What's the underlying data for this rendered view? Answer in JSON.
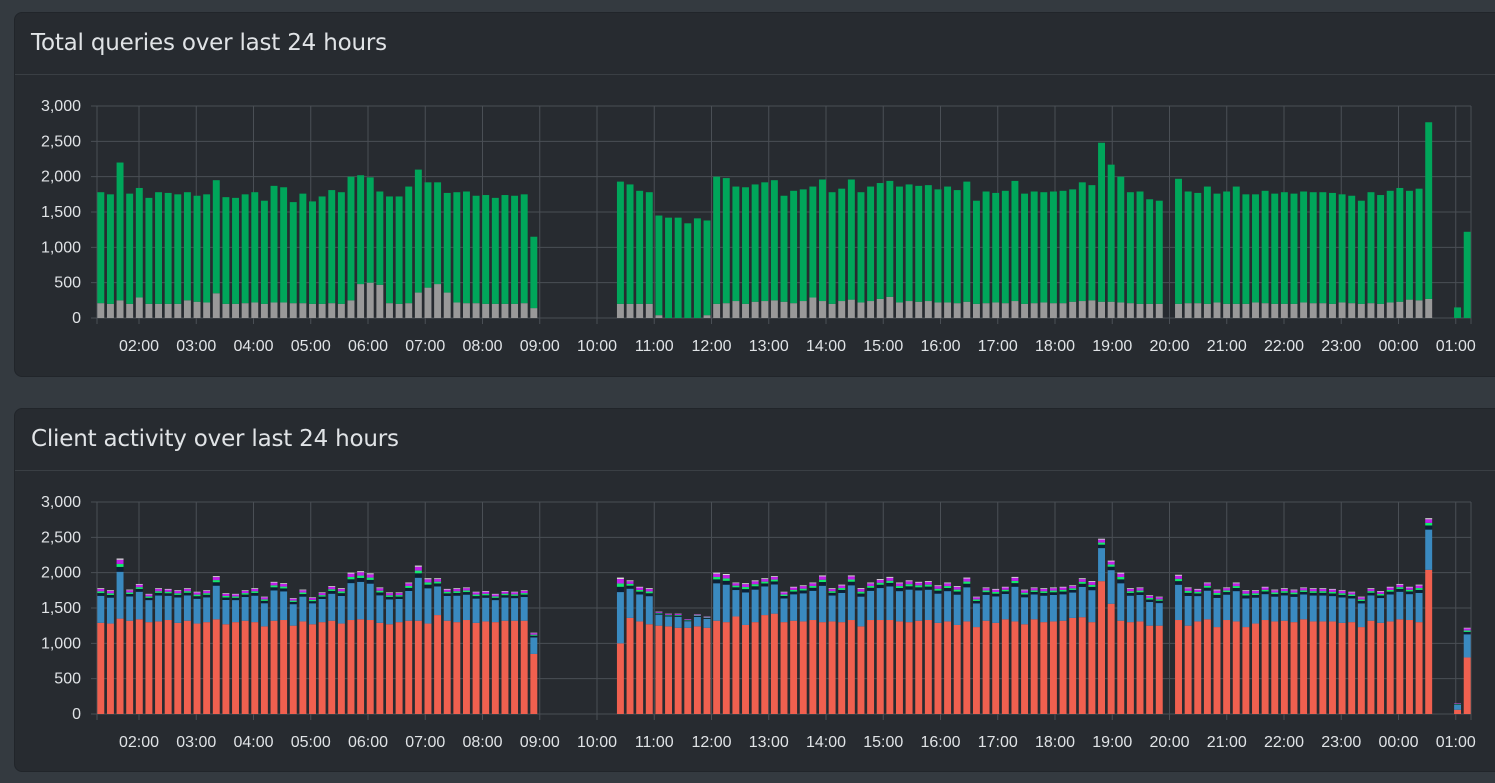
{
  "colors": {
    "background": "#343a40",
    "panel": "#272b30",
    "grid": "#4a4f55",
    "text": "#e0e3e6",
    "blocked": "#999999",
    "permitted": "#00a65a",
    "clients": [
      "#f0604f",
      "#3a8ac0",
      "#0c2035",
      "#14e86a",
      "#c020e8",
      "#e8e8e8"
    ]
  },
  "panels": {
    "queries": {
      "title": "Total queries over last 24 hours"
    },
    "clients": {
      "title": "Client activity over last 24 hours"
    }
  },
  "chart_data": [
    {
      "type": "bar",
      "stacked": true,
      "title": "Total queries over last 24 hours",
      "ylim": [
        0,
        3000
      ],
      "yticks": [
        "3,000",
        "2,500",
        "2,000",
        "1,500",
        "1,000",
        "500",
        "0"
      ],
      "xticks": [
        "02:00",
        "03:00",
        "04:00",
        "05:00",
        "06:00",
        "07:00",
        "08:00",
        "09:00",
        "10:00",
        "11:00",
        "12:00",
        "13:00",
        "14:00",
        "15:00",
        "16:00",
        "17:00",
        "18:00",
        "19:00",
        "20:00",
        "21:00",
        "22:00",
        "23:00",
        "00:00",
        "01:00"
      ],
      "grid": true,
      "total": [
        1780,
        1750,
        2200,
        1760,
        1840,
        1700,
        1780,
        1770,
        1750,
        1780,
        1730,
        1750,
        1950,
        1710,
        1700,
        1750,
        1780,
        1660,
        1870,
        1850,
        1640,
        1760,
        1650,
        1720,
        1810,
        1780,
        2000,
        2020,
        1990,
        1790,
        1720,
        1720,
        1860,
        2100,
        1920,
        1920,
        1770,
        1780,
        1790,
        1730,
        1740,
        1700,
        1740,
        1730,
        1750,
        1150,
        0,
        0,
        0,
        0,
        0,
        0,
        0,
        0,
        1930,
        1890,
        1800,
        1780,
        1450,
        1420,
        1420,
        1340,
        1410,
        1380,
        2000,
        1980,
        1860,
        1850,
        1890,
        1920,
        1950,
        1730,
        1800,
        1820,
        1860,
        1960,
        1780,
        1830,
        1960,
        1780,
        1860,
        1910,
        1940,
        1860,
        1890,
        1870,
        1880,
        1820,
        1860,
        1810,
        1930,
        1660,
        1790,
        1770,
        1800,
        1940,
        1760,
        1790,
        1780,
        1790,
        1800,
        1820,
        1920,
        1880,
        2480,
        2170,
        2000,
        1780,
        1790,
        1680,
        1660,
        0,
        1970,
        1790,
        1770,
        1860,
        1760,
        1790,
        1860,
        1750,
        1750,
        1800,
        1760,
        1780,
        1760,
        1790,
        1780,
        1780,
        1770,
        1750,
        1730,
        1660,
        1780,
        1740,
        1800,
        1840,
        1800,
        1830,
        2770,
        0,
        0,
        150,
        1220
      ],
      "series": [
        {
          "name": "Blocked",
          "values": [
            210,
            200,
            250,
            200,
            290,
            200,
            200,
            200,
            200,
            250,
            230,
            220,
            350,
            200,
            200,
            210,
            220,
            200,
            220,
            220,
            210,
            210,
            200,
            200,
            210,
            200,
            250,
            480,
            500,
            470,
            210,
            200,
            210,
            360,
            430,
            480,
            360,
            220,
            210,
            210,
            200,
            200,
            200,
            200,
            210,
            140,
            0,
            0,
            0,
            0,
            0,
            0,
            0,
            0,
            200,
            200,
            200,
            200,
            40,
            0,
            0,
            0,
            0,
            40,
            200,
            210,
            240,
            200,
            230,
            240,
            250,
            230,
            210,
            240,
            290,
            240,
            200,
            240,
            260,
            220,
            240,
            270,
            300,
            220,
            240,
            230,
            240,
            220,
            220,
            210,
            230,
            200,
            210,
            220,
            210,
            240,
            200,
            210,
            220,
            210,
            210,
            230,
            240,
            250,
            230,
            230,
            220,
            210,
            200,
            200,
            200,
            0,
            200,
            210,
            210,
            200,
            220,
            200,
            200,
            200,
            220,
            210,
            200,
            200,
            200,
            220,
            210,
            210,
            200,
            220,
            210,
            200,
            210,
            200,
            220,
            230,
            260,
            250,
            270,
            0,
            0,
            0,
            0
          ]
        }
      ]
    },
    {
      "type": "bar",
      "stacked": true,
      "title": "Client activity over last 24 hours",
      "ylim": [
        0,
        3000
      ],
      "yticks": [
        "3,000",
        "2,500",
        "2,000",
        "1,500",
        "1,000",
        "500",
        "0"
      ],
      "xticks": [
        "02:00",
        "03:00",
        "04:00",
        "05:00",
        "06:00",
        "07:00",
        "08:00",
        "09:00",
        "10:00",
        "11:00",
        "12:00",
        "13:00",
        "14:00",
        "15:00",
        "16:00",
        "17:00",
        "18:00",
        "19:00",
        "20:00",
        "21:00",
        "22:00",
        "23:00",
        "00:00",
        "01:00"
      ],
      "grid": true,
      "total": [
        1780,
        1750,
        2200,
        1760,
        1840,
        1700,
        1780,
        1770,
        1750,
        1780,
        1730,
        1750,
        1950,
        1710,
        1700,
        1750,
        1780,
        1660,
        1870,
        1850,
        1640,
        1760,
        1650,
        1720,
        1810,
        1780,
        2000,
        2020,
        1990,
        1790,
        1720,
        1720,
        1860,
        2100,
        1920,
        1920,
        1770,
        1780,
        1790,
        1730,
        1740,
        1700,
        1740,
        1730,
        1750,
        1150,
        0,
        0,
        0,
        0,
        0,
        0,
        0,
        0,
        1930,
        1890,
        1800,
        1780,
        1450,
        1420,
        1420,
        1340,
        1410,
        1380,
        2000,
        1980,
        1860,
        1850,
        1890,
        1920,
        1950,
        1730,
        1800,
        1820,
        1860,
        1960,
        1780,
        1830,
        1960,
        1780,
        1860,
        1910,
        1940,
        1860,
        1890,
        1870,
        1880,
        1820,
        1860,
        1810,
        1930,
        1660,
        1790,
        1770,
        1800,
        1940,
        1760,
        1790,
        1780,
        1790,
        1800,
        1820,
        1920,
        1880,
        2480,
        2170,
        2000,
        1780,
        1790,
        1680,
        1660,
        0,
        1970,
        1790,
        1770,
        1860,
        1760,
        1790,
        1860,
        1750,
        1750,
        1800,
        1760,
        1780,
        1760,
        1790,
        1780,
        1780,
        1770,
        1750,
        1730,
        1660,
        1780,
        1740,
        1800,
        1840,
        1800,
        1830,
        2770,
        0,
        0,
        150,
        1220
      ],
      "lower": [
        1290,
        1280,
        1350,
        1320,
        1340,
        1300,
        1310,
        1330,
        1290,
        1320,
        1280,
        1300,
        1340,
        1270,
        1300,
        1320,
        1300,
        1240,
        1320,
        1330,
        1250,
        1310,
        1270,
        1300,
        1320,
        1280,
        1330,
        1340,
        1330,
        1290,
        1270,
        1300,
        1320,
        1320,
        1280,
        1400,
        1320,
        1300,
        1330,
        1290,
        1310,
        1300,
        1320,
        1320,
        1320,
        850,
        0,
        0,
        0,
        0,
        0,
        0,
        0,
        0,
        1000,
        1360,
        1310,
        1270,
        1250,
        1240,
        1220,
        1220,
        1240,
        1220,
        1320,
        1300,
        1380,
        1260,
        1300,
        1400,
        1420,
        1300,
        1320,
        1310,
        1330,
        1300,
        1310,
        1300,
        1330,
        1240,
        1330,
        1330,
        1330,
        1310,
        1300,
        1320,
        1330,
        1290,
        1310,
        1260,
        1310,
        1230,
        1320,
        1290,
        1340,
        1310,
        1270,
        1340,
        1300,
        1310,
        1320,
        1360,
        1370,
        1300,
        1880,
        1560,
        1320,
        1300,
        1310,
        1250,
        1250,
        0,
        1330,
        1250,
        1310,
        1340,
        1230,
        1330,
        1310,
        1230,
        1280,
        1330,
        1310,
        1320,
        1300,
        1340,
        1310,
        1310,
        1310,
        1290,
        1300,
        1230,
        1320,
        1290,
        1310,
        1340,
        1330,
        1300,
        2040,
        0,
        0,
        60,
        800
      ],
      "series": [
        {
          "name": ""
        },
        {
          "name": ""
        },
        {
          "name": ""
        },
        {
          "name": ""
        },
        {
          "name": ""
        },
        {
          "name": ""
        }
      ]
    }
  ]
}
